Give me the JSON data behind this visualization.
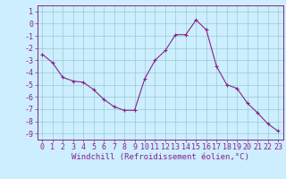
{
  "x": [
    0,
    1,
    2,
    3,
    4,
    5,
    6,
    7,
    8,
    9,
    10,
    11,
    12,
    13,
    14,
    15,
    16,
    17,
    18,
    19,
    20,
    21,
    22,
    23
  ],
  "y": [
    -2.5,
    -3.2,
    -4.4,
    -4.7,
    -4.8,
    -5.4,
    -6.2,
    -6.8,
    -7.1,
    -7.1,
    -4.5,
    -3.0,
    -2.2,
    -0.9,
    -0.9,
    0.3,
    -0.5,
    -3.5,
    -5.0,
    -5.3,
    -6.5,
    -7.3,
    -8.2,
    -8.8
  ],
  "line_color": "#882288",
  "marker": "+",
  "marker_size": 3,
  "bg_color": "#cceeff",
  "grid_color": "#99cccc",
  "xlabel": "Windchill (Refroidissement éolien,°C)",
  "ylim": [
    -9.5,
    1.5
  ],
  "xlim": [
    -0.5,
    23.5
  ],
  "yticks": [
    1,
    0,
    -1,
    -2,
    -3,
    -4,
    -5,
    -6,
    -7,
    -8,
    -9
  ],
  "xticks": [
    0,
    1,
    2,
    3,
    4,
    5,
    6,
    7,
    8,
    9,
    10,
    11,
    12,
    13,
    14,
    15,
    16,
    17,
    18,
    19,
    20,
    21,
    22,
    23
  ],
  "xlabel_fontsize": 6.5,
  "tick_fontsize": 6.0
}
